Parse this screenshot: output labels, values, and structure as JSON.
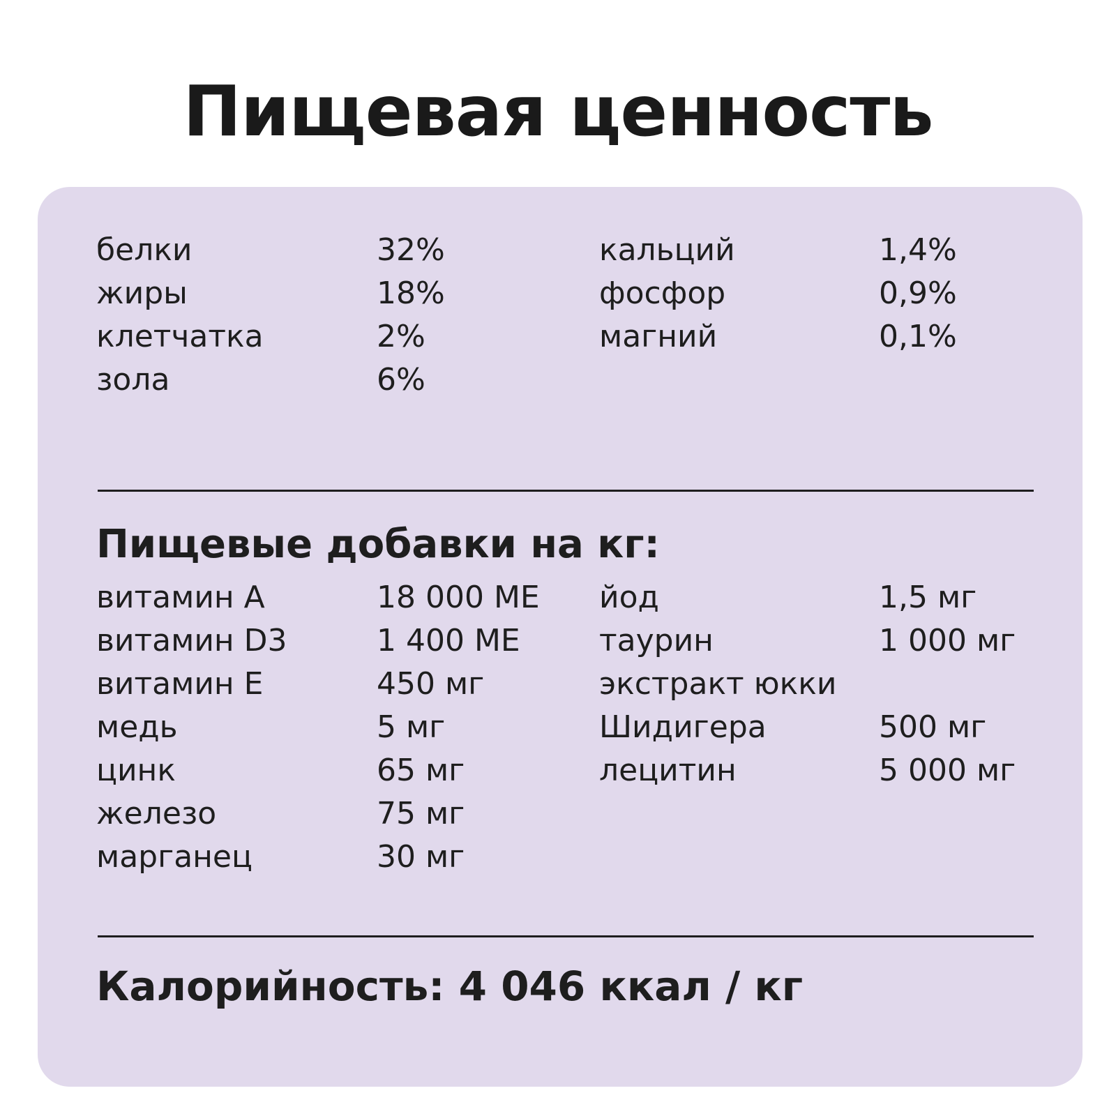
{
  "title": "Пищевая ценность",
  "composition": [
    {
      "name": "белки",
      "value": "32%",
      "name2": "кальций",
      "value2": "1,4%"
    },
    {
      "name": "жиры",
      "value": "18%",
      "name2": "фосфор",
      "value2": "0,9%"
    },
    {
      "name": "клетчатка",
      "value": "2%",
      "name2": "магний",
      "value2": "0,1%"
    },
    {
      "name": "зола",
      "value": "6%",
      "name2": "",
      "value2": ""
    }
  ],
  "additives_title": "Пищевые добавки на кг:",
  "additives": [
    {
      "name": "витамин А",
      "value": "18 000 МЕ",
      "name2": "йод",
      "value2": "1,5 мг"
    },
    {
      "name": "витамин D3",
      "value": "1 400 МЕ",
      "name2": "таурин",
      "value2": "1 000 мг"
    },
    {
      "name": "витамин Е",
      "value": "450 мг",
      "name2": "экстракт юкки",
      "value2": ""
    },
    {
      "name": "медь",
      "value": "5 мг",
      "name2": "Шидигера",
      "value2": "500 мг"
    },
    {
      "name": "цинк",
      "value": "65 мг",
      "name2": "лецитин",
      "value2": "5 000 мг"
    },
    {
      "name": "железо",
      "value": "75 мг",
      "name2": "",
      "value2": ""
    },
    {
      "name": "марганец",
      "value": "30 мг",
      "name2": "",
      "value2": ""
    }
  ],
  "calories": "Калорийность: 4 046 ккал / кг"
}
